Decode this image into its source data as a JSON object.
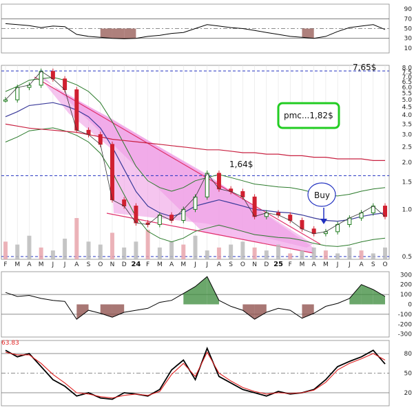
{
  "chart_data": [
    {
      "type": "line",
      "panel": "top oscillator",
      "y_ticks": [
        "90",
        "70",
        "50",
        "30",
        "10"
      ],
      "ylim": [
        0,
        100
      ],
      "reference_levels": [
        70,
        50,
        30
      ],
      "x": [
        "F",
        "M",
        "A",
        "M",
        "J",
        "J",
        "A",
        "S",
        "O",
        "N",
        "D",
        "24",
        "F",
        "M",
        "A",
        "M",
        "J",
        "J",
        "A",
        "S",
        "O",
        "N",
        "D",
        "25",
        "F",
        "M",
        "A",
        "M",
        "J",
        "J",
        "A",
        "S",
        "O"
      ],
      "values": [
        60,
        58,
        56,
        52,
        55,
        54,
        38,
        34,
        32,
        30,
        29,
        30,
        34,
        36,
        40,
        42,
        50,
        58,
        55,
        52,
        50,
        46,
        42,
        38,
        34,
        32,
        30,
        34,
        44,
        52,
        55,
        58,
        48
      ],
      "colors": {
        "line": "#000000",
        "fill_below": "#8b4a45",
        "fill_above": "#4a7a4a"
      }
    },
    {
      "type": "line",
      "panel": "price (log scale)",
      "y_ticks": [
        "8.0",
        "7.5",
        "7.0",
        "6.5",
        "6.0",
        "5.5",
        "5.0",
        "4.5",
        "4.0",
        "3.5",
        "3.0",
        "2.5",
        "2.0",
        "1.5",
        "1.0",
        "0.5"
      ],
      "scale": "log",
      "ylim": [
        0.48,
        8.3
      ],
      "x": [
        "F",
        "M",
        "A",
        "M",
        "J",
        "J",
        "A",
        "S",
        "O",
        "N",
        "D",
        "24",
        "F",
        "M",
        "A",
        "M",
        "J",
        "J",
        "A",
        "S",
        "O",
        "N",
        "D",
        "25",
        "F",
        "M",
        "A",
        "M",
        "J",
        "J",
        "A",
        "S",
        "O"
      ],
      "series": [
        {
          "role": "price",
          "values": [
            5.0,
            6.0,
            6.2,
            7.6,
            6.8,
            5.8,
            3.2,
            3.0,
            2.6,
            1.15,
            1.05,
            0.82,
            0.8,
            0.92,
            0.85,
            1.0,
            1.2,
            1.7,
            1.35,
            1.3,
            1.2,
            0.9,
            0.95,
            0.92,
            0.85,
            0.75,
            0.7,
            0.72,
            0.8,
            0.88,
            0.95,
            1.05,
            0.9
          ]
        },
        {
          "role": "moving average 1",
          "values": [
            3.9,
            4.2,
            4.6,
            4.7,
            4.8,
            4.6,
            4.3,
            3.9,
            3.3,
            2.5,
            1.8,
            1.3,
            1.05,
            0.95,
            0.9,
            0.95,
            1.05,
            1.1,
            1.15,
            1.1,
            1.05,
            1.0,
            0.98,
            0.96,
            0.95,
            0.92,
            0.88,
            0.85,
            0.84,
            0.86,
            0.9,
            0.93,
            0.95
          ]
        },
        {
          "role": "moving average 2",
          "values": [
            3.5,
            3.4,
            3.3,
            3.25,
            3.2,
            3.15,
            3.1,
            3.0,
            2.9,
            2.8,
            2.75,
            2.7,
            2.65,
            2.6,
            2.55,
            2.5,
            2.45,
            2.4,
            2.4,
            2.35,
            2.3,
            2.3,
            2.25,
            2.25,
            2.2,
            2.2,
            2.15,
            2.15,
            2.1,
            2.1,
            2.1,
            2.05,
            2.05
          ]
        },
        {
          "role": "volume",
          "values": [
            30,
            25,
            40,
            20,
            15,
            35,
            70,
            30,
            25,
            45,
            20,
            30,
            50,
            20,
            30,
            25,
            40,
            15,
            20,
            25,
            30,
            20,
            15,
            25,
            10,
            15,
            20,
            15,
            10,
            20,
            15,
            10,
            20
          ]
        }
      ],
      "annotations": [
        "7,65$",
        "pmc...1,82$",
        "1,64$",
        "Buy"
      ],
      "reference_levels": [
        7.65,
        1.64,
        0.5
      ],
      "colors": {
        "up": "#1a7a1a",
        "down": "#d02030",
        "triangle_fill": "#f0a8e8",
        "triangle_edge": "#e0306a",
        "ma1": "#3a3a9a",
        "ma2": "#c82040",
        "band": "#2a7a2a",
        "ref_line": "#2030c0",
        "box_border": "#22cc22",
        "buy_circle": "#2030c0"
      }
    },
    {
      "type": "line",
      "panel": "middle oscillator",
      "y_ticks": [
        "300",
        "200",
        "100",
        "0",
        "-100",
        "-200",
        "-300"
      ],
      "ylim": [
        -330,
        330
      ],
      "reference_levels": [
        100,
        -100
      ],
      "x": [
        "F",
        "M",
        "A",
        "M",
        "J",
        "J",
        "A",
        "S",
        "O",
        "N",
        "D",
        "24",
        "F",
        "M",
        "A",
        "M",
        "J",
        "J",
        "A",
        "S",
        "O",
        "N",
        "D",
        "25",
        "F",
        "M",
        "A",
        "M",
        "J",
        "J",
        "A",
        "S",
        "O"
      ],
      "values": [
        120,
        80,
        90,
        60,
        40,
        30,
        -150,
        -60,
        -90,
        -130,
        -80,
        -60,
        -40,
        20,
        40,
        110,
        180,
        280,
        40,
        -20,
        -60,
        -150,
        -80,
        -40,
        -60,
        -140,
        -90,
        -20,
        10,
        60,
        200,
        150,
        80
      ],
      "colors": {
        "line": "#000000",
        "fill_above": "#3a8a3a",
        "fill_below": "#8b4a45"
      }
    },
    {
      "type": "line",
      "panel": "bottom oscillator",
      "label": "63.83",
      "y_ticks": [
        "80",
        "50",
        "20"
      ],
      "ylim": [
        0,
        100
      ],
      "reference_levels": [
        80,
        50,
        20
      ],
      "x": [
        "F",
        "M",
        "A",
        "M",
        "J",
        "J",
        "A",
        "S",
        "O",
        "N",
        "D",
        "24",
        "F",
        "M",
        "A",
        "M",
        "J",
        "J",
        "A",
        "S",
        "O",
        "N",
        "D",
        "25",
        "F",
        "M",
        "A",
        "M",
        "J",
        "J",
        "A",
        "S",
        "O"
      ],
      "series": [
        {
          "role": "fast",
          "values": [
            85,
            75,
            80,
            60,
            40,
            30,
            15,
            20,
            12,
            10,
            20,
            18,
            15,
            25,
            55,
            70,
            40,
            88,
            45,
            35,
            25,
            20,
            15,
            22,
            18,
            20,
            25,
            40,
            60,
            68,
            75,
            85,
            64
          ]
        },
        {
          "role": "slow",
          "values": [
            82,
            78,
            78,
            65,
            48,
            35,
            20,
            18,
            14,
            12,
            16,
            18,
            16,
            22,
            48,
            65,
            45,
            82,
            50,
            38,
            28,
            22,
            18,
            20,
            19,
            20,
            24,
            36,
            55,
            65,
            72,
            80,
            70
          ]
        }
      ],
      "colors": {
        "fast": "#000000",
        "slow": "#e02020",
        "label": "#e02020"
      }
    }
  ]
}
